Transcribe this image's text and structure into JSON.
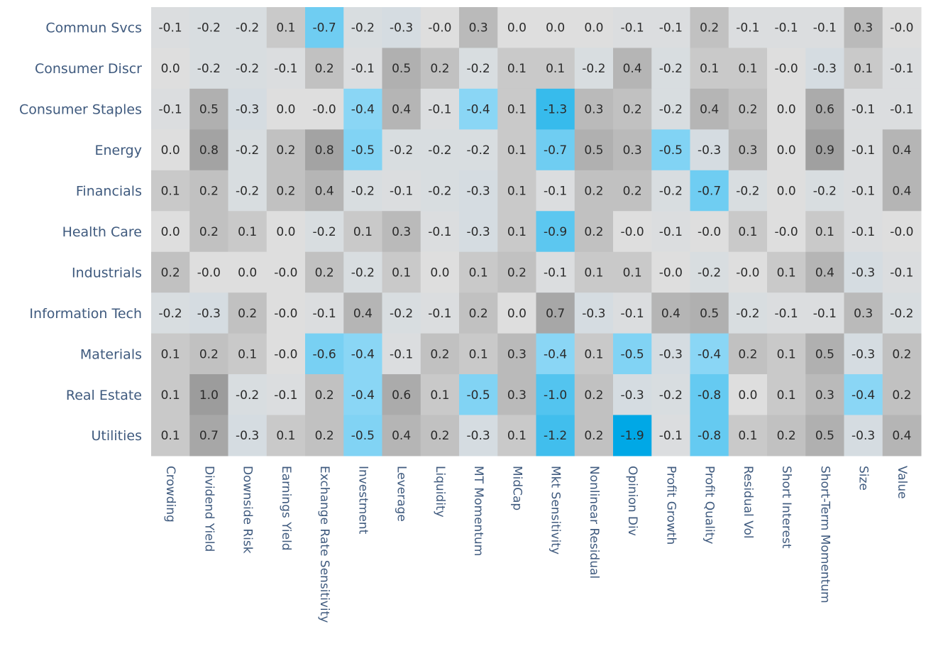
{
  "chart_data": {
    "type": "heatmap",
    "title": "",
    "xlabel": "",
    "ylabel": "",
    "rows": [
      "Commun Svcs",
      "Consumer Discr",
      "Consumer Staples",
      "Energy",
      "Financials",
      "Health Care",
      "Industrials",
      "Information Tech",
      "Materials",
      "Real Estate",
      "Utilities"
    ],
    "columns": [
      "Crowding",
      "Dividend Yield",
      "Downside Risk",
      "Earnings Yield",
      "Exchange Rate Sensitivity",
      "Investment",
      "Leverage",
      "Liquidity",
      "MT Momentum",
      "MidCap",
      "Mkt Sensitivity",
      "Nonlinear Residual",
      "Opinion Div",
      "Profit Growth",
      "Profit Quality",
      "Residual Vol",
      "Short Interest",
      "Short-Term Momentum",
      "Size",
      "Value"
    ],
    "values": [
      [
        "-0.1",
        "-0.2",
        "-0.2",
        "0.1",
        "-0.7",
        "-0.2",
        "-0.3",
        "-0.0",
        "0.3",
        "0.0",
        "0.0",
        "0.0",
        "-0.1",
        "-0.1",
        "0.2",
        "-0.1",
        "-0.1",
        "-0.1",
        "0.3",
        "-0.0"
      ],
      [
        "0.0",
        "-0.2",
        "-0.2",
        "-0.1",
        "0.2",
        "-0.1",
        "0.5",
        "0.2",
        "-0.2",
        "0.1",
        "0.1",
        "-0.2",
        "0.4",
        "-0.2",
        "0.1",
        "0.1",
        "-0.0",
        "-0.3",
        "0.1",
        "-0.1"
      ],
      [
        "-0.1",
        "0.5",
        "-0.3",
        "0.0",
        "-0.0",
        "-0.4",
        "0.4",
        "-0.1",
        "-0.4",
        "0.1",
        "-1.3",
        "0.3",
        "0.2",
        "-0.2",
        "0.4",
        "0.2",
        "0.0",
        "0.6",
        "-0.1",
        "-0.1"
      ],
      [
        "0.0",
        "0.8",
        "-0.2",
        "0.2",
        "0.8",
        "-0.5",
        "-0.2",
        "-0.2",
        "-0.2",
        "0.1",
        "-0.7",
        "0.5",
        "0.3",
        "-0.5",
        "-0.3",
        "0.3",
        "0.0",
        "0.9",
        "-0.1",
        "0.4"
      ],
      [
        "0.1",
        "0.2",
        "-0.2",
        "0.2",
        "0.4",
        "-0.2",
        "-0.1",
        "-0.2",
        "-0.3",
        "0.1",
        "-0.1",
        "0.2",
        "0.2",
        "-0.2",
        "-0.7",
        "-0.2",
        "0.0",
        "-0.2",
        "-0.1",
        "0.4"
      ],
      [
        "0.0",
        "0.2",
        "0.1",
        "0.0",
        "-0.2",
        "0.1",
        "0.3",
        "-0.1",
        "-0.3",
        "0.1",
        "-0.9",
        "0.2",
        "-0.0",
        "-0.1",
        "-0.0",
        "0.1",
        "-0.0",
        "0.1",
        "-0.1",
        "-0.0"
      ],
      [
        "0.2",
        "-0.0",
        "0.0",
        "-0.0",
        "0.2",
        "-0.2",
        "0.1",
        "0.0",
        "0.1",
        "0.2",
        "-0.1",
        "0.1",
        "0.1",
        "-0.0",
        "-0.2",
        "-0.0",
        "0.1",
        "0.4",
        "-0.3",
        "-0.1"
      ],
      [
        "-0.2",
        "-0.3",
        "0.2",
        "-0.0",
        "-0.1",
        "0.4",
        "-0.2",
        "-0.1",
        "0.2",
        "0.0",
        "0.7",
        "-0.3",
        "-0.1",
        "0.4",
        "0.5",
        "-0.2",
        "-0.1",
        "-0.1",
        "0.3",
        "-0.2"
      ],
      [
        "0.1",
        "0.2",
        "0.1",
        "-0.0",
        "-0.6",
        "-0.4",
        "-0.1",
        "0.2",
        "0.1",
        "0.3",
        "-0.4",
        "0.1",
        "-0.5",
        "-0.3",
        "-0.4",
        "0.2",
        "0.1",
        "0.5",
        "-0.3",
        "0.2"
      ],
      [
        "0.1",
        "1.0",
        "-0.2",
        "-0.1",
        "0.2",
        "-0.4",
        "0.6",
        "0.1",
        "-0.5",
        "0.3",
        "-1.0",
        "0.2",
        "-0.3",
        "-0.2",
        "-0.8",
        "0.0",
        "0.1",
        "0.3",
        "-0.4",
        "0.2"
      ],
      [
        "0.1",
        "0.7",
        "-0.3",
        "0.1",
        "0.2",
        "-0.5",
        "0.4",
        "0.2",
        "-0.3",
        "0.1",
        "-1.2",
        "0.2",
        "-1.9",
        "-0.1",
        "-0.8",
        "0.1",
        "0.2",
        "0.5",
        "-0.3",
        "0.4"
      ]
    ],
    "colors": {
      "positive_max": "#999999",
      "neutral": "#dedede",
      "negative_max": "#00a8e6"
    },
    "legend": "none",
    "grid": false
  }
}
